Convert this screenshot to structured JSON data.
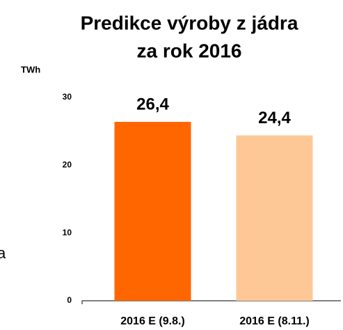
{
  "chart_data": {
    "type": "bar",
    "title": [
      "Predikce výroby z jádra",
      "za rok 2016"
    ],
    "y_label": "TWh",
    "side_text": "a",
    "categories": [
      "2016 E (9.8.)",
      "2016 E (8.11.)"
    ],
    "values": [
      26.4,
      24.4
    ],
    "value_labels": [
      "26,4",
      "24,4"
    ],
    "colors": [
      "#ff6600",
      "#fdc896"
    ],
    "ylim": [
      0,
      30
    ],
    "yticks": [
      0,
      10,
      20,
      30
    ],
    "grid": false
  }
}
